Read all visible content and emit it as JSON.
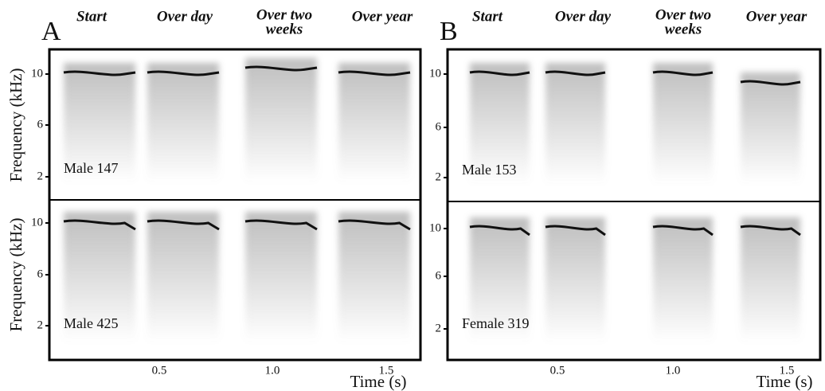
{
  "panels": [
    {
      "letter": "A",
      "column_titles": [
        [
          "Start"
        ],
        [
          "Over day"
        ],
        [
          "Over two",
          "weeks"
        ],
        [
          "Over year"
        ]
      ],
      "y_axis_label": "Frequency (kHz)",
      "rows": [
        {
          "label": "Male 147",
          "yticks": [
            "10",
            "6",
            "2"
          ]
        },
        {
          "label": "Male 425",
          "yticks": [
            "10",
            "6",
            "2"
          ]
        }
      ],
      "xticks": [
        "0.5",
        "1.0",
        "1.5"
      ],
      "x_axis_label": "Time (s)"
    },
    {
      "letter": "B",
      "column_titles": [
        [
          "Start"
        ],
        [
          "Over day"
        ],
        [
          "Over two",
          "weeks"
        ],
        [
          "Over year"
        ]
      ],
      "rows": [
        {
          "label": "Male 153",
          "yticks": [
            "10",
            "6",
            "2"
          ]
        },
        {
          "label": "Female 319",
          "yticks": [
            "10",
            "6",
            "2"
          ]
        }
      ],
      "xticks": [
        "0.5",
        "1.0",
        "1.5"
      ],
      "x_axis_label": "Time (s)"
    }
  ]
}
